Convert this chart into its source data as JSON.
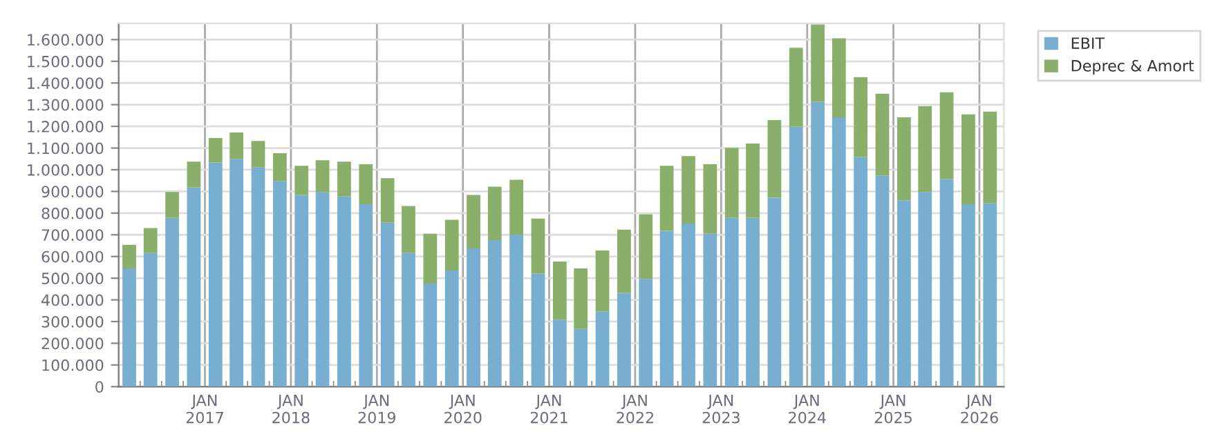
{
  "chart_data": {
    "type": "bar",
    "stacked": true,
    "x": [
      "2016-02-15",
      "2016-05-15",
      "2016-08-15",
      "2016-11-15",
      "2017-02-15",
      "2017-05-15",
      "2017-08-15",
      "2017-11-15",
      "2018-02-15",
      "2018-05-15",
      "2018-08-15",
      "2018-11-15",
      "2019-02-15",
      "2019-05-15",
      "2019-08-15",
      "2019-11-15",
      "2020-02-15",
      "2020-05-15",
      "2020-08-15",
      "2020-11-15",
      "2021-02-15",
      "2021-05-15",
      "2021-08-15",
      "2021-11-15",
      "2022-02-15",
      "2022-05-15",
      "2022-08-15",
      "2022-11-15",
      "2023-02-15",
      "2023-05-15",
      "2023-08-15",
      "2023-11-15",
      "2024-02-15",
      "2024-05-15",
      "2024-08-15",
      "2024-11-15",
      "2025-02-15",
      "2025-05-15",
      "2025-08-15",
      "2025-11-15",
      "2026-02-15"
    ],
    "series": [
      {
        "name": "EBIT",
        "color": "#78afd0",
        "values": [
          545000,
          616000,
          778000,
          918000,
          1033000,
          1050000,
          1012000,
          948000,
          884000,
          897000,
          878000,
          841000,
          756000,
          616000,
          475000,
          535000,
          637000,
          675000,
          701000,
          522000,
          309000,
          266000,
          347000,
          432000,
          496000,
          718000,
          752000,
          705000,
          778000,
          778000,
          871000,
          1199000,
          1314000,
          1242000,
          1059000,
          974000,
          859000,
          897000,
          957000,
          841000,
          845000
        ]
      },
      {
        "name": "Deprec & Amort",
        "color": "#8aaf6a",
        "values": [
          109000,
          115000,
          119000,
          119000,
          113000,
          122000,
          121000,
          128000,
          134000,
          147000,
          159000,
          184000,
          205000,
          217000,
          230000,
          234000,
          247000,
          247000,
          253000,
          253000,
          268000,
          279000,
          281000,
          292000,
          299000,
          300000,
          311000,
          320000,
          323000,
          343000,
          358000,
          363000,
          356000,
          364000,
          368000,
          377000,
          383000,
          396000,
          400000,
          414000,
          423000
        ]
      }
    ],
    "ylim": [
      0,
      1675000
    ],
    "yticks": [
      0,
      {
        "value": 100000,
        "label": "100.000"
      },
      {
        "value": 200000,
        "label": "200.000"
      },
      {
        "value": 300000,
        "label": "300.000"
      },
      {
        "value": 400000,
        "label": "400.000"
      },
      {
        "value": 500000,
        "label": "500.000"
      },
      {
        "value": 600000,
        "label": "600.000"
      },
      {
        "value": 700000,
        "label": "700.000"
      },
      {
        "value": 800000,
        "label": "800.000"
      },
      {
        "value": 900000,
        "label": "900.000"
      },
      {
        "value": 1000000,
        "label": "1.000.000"
      },
      {
        "value": 1100000,
        "label": "1.100.000"
      },
      {
        "value": 1200000,
        "label": "1.200.000"
      },
      {
        "value": 1300000,
        "label": "1.300.000"
      },
      {
        "value": 1400000,
        "label": "1.400.000"
      },
      {
        "value": 1500000,
        "label": "1.500.000"
      },
      {
        "value": 1600000,
        "label": "1.600.000"
      }
    ],
    "xlim": [
      "2016-01-01",
      "2026-04-15"
    ],
    "xticks": [
      {
        "value": "2016-04-01",
        "label": null
      },
      {
        "value": "2016-07-01",
        "label": null
      },
      {
        "value": "2016-10-01",
        "label": null
      },
      {
        "value": "2017-01-01",
        "label": "JAN\n2017"
      },
      {
        "value": "2017-04-01",
        "label": null
      },
      {
        "value": "2017-07-01",
        "label": null
      },
      {
        "value": "2017-10-01",
        "label": null
      },
      {
        "value": "2018-01-01",
        "label": "JAN\n2018"
      },
      {
        "value": "2018-04-01",
        "label": null
      },
      {
        "value": "2018-07-01",
        "label": null
      },
      {
        "value": "2018-10-01",
        "label": null
      },
      {
        "value": "2019-01-01",
        "label": "JAN\n2019"
      },
      {
        "value": "2019-04-01",
        "label": null
      },
      {
        "value": "2019-07-01",
        "label": null
      },
      {
        "value": "2019-10-01",
        "label": null
      },
      {
        "value": "2020-01-01",
        "label": "JAN\n2020"
      },
      {
        "value": "2020-04-01",
        "label": null
      },
      {
        "value": "2020-07-01",
        "label": null
      },
      {
        "value": "2020-10-01",
        "label": null
      },
      {
        "value": "2021-01-01",
        "label": "JAN\n2021"
      },
      {
        "value": "2021-04-01",
        "label": null
      },
      {
        "value": "2021-07-01",
        "label": null
      },
      {
        "value": "2021-10-01",
        "label": null
      },
      {
        "value": "2022-01-01",
        "label": "JAN\n2022"
      },
      {
        "value": "2022-04-01",
        "label": null
      },
      {
        "value": "2022-07-01",
        "label": null
      },
      {
        "value": "2022-10-01",
        "label": null
      },
      {
        "value": "2023-01-01",
        "label": "JAN\n2023"
      },
      {
        "value": "2023-04-01",
        "label": null
      },
      {
        "value": "2023-07-01",
        "label": null
      },
      {
        "value": "2023-10-01",
        "label": null
      },
      {
        "value": "2024-01-01",
        "label": "JAN\n2024"
      },
      {
        "value": "2024-04-01",
        "label": null
      },
      {
        "value": "2024-07-01",
        "label": null
      },
      {
        "value": "2024-10-01",
        "label": null
      },
      {
        "value": "2025-01-01",
        "label": "JAN\n2025"
      },
      {
        "value": "2025-04-01",
        "label": null
      },
      {
        "value": "2025-07-01",
        "label": null
      },
      {
        "value": "2025-10-01",
        "label": null
      },
      {
        "value": "2026-01-01",
        "label": "JAN\n2026"
      }
    ],
    "grid": true,
    "legend": "top right"
  }
}
